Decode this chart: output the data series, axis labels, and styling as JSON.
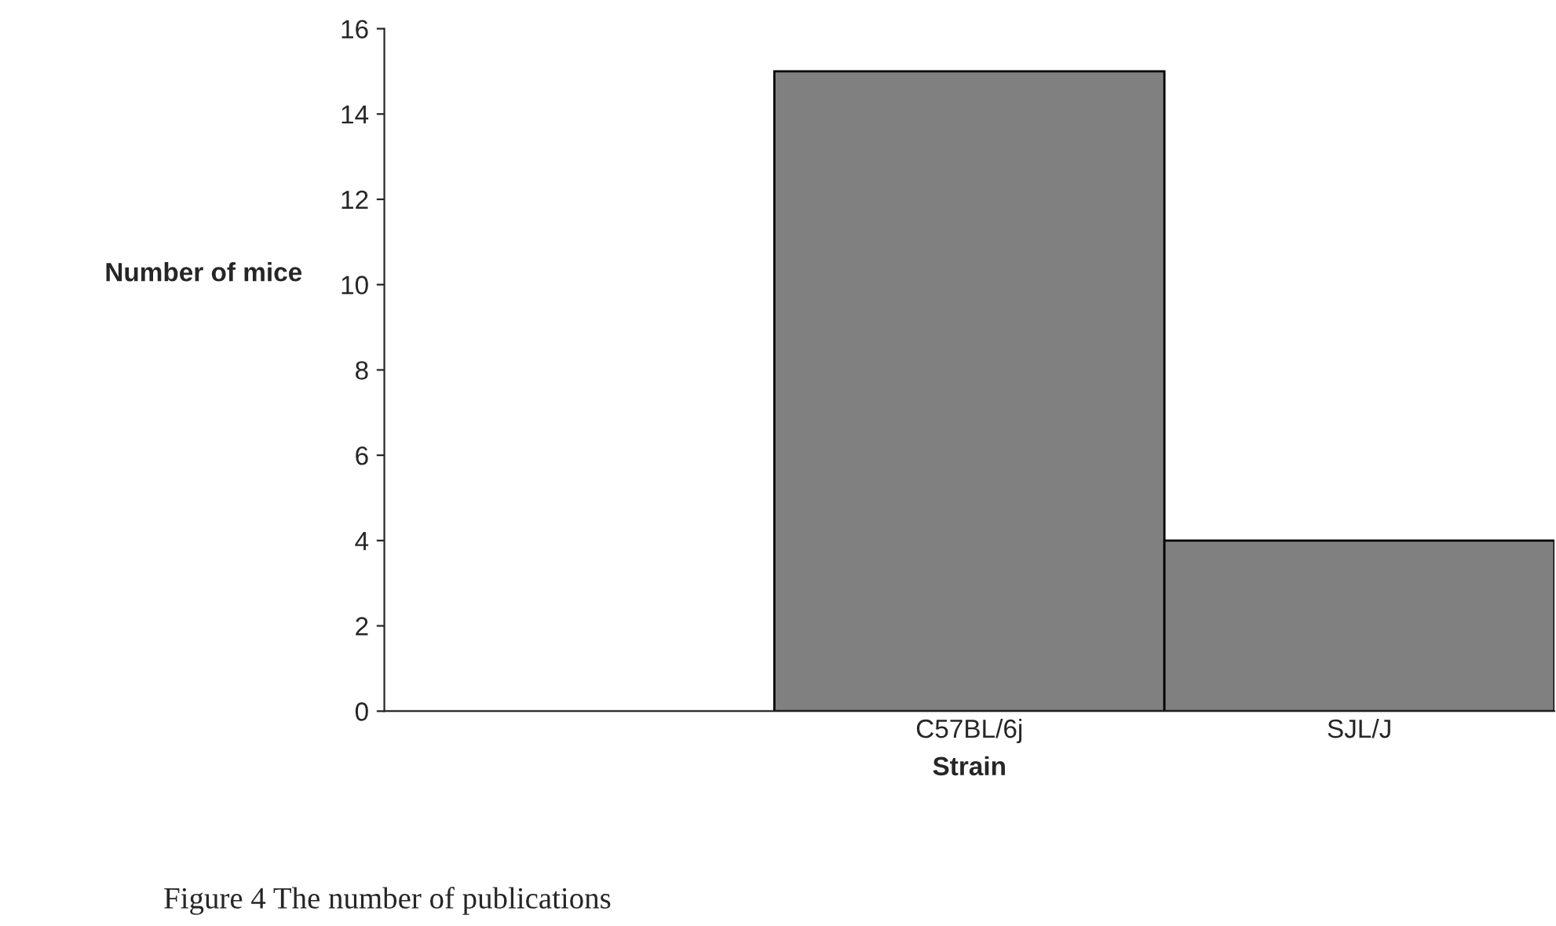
{
  "chart_data": {
    "type": "bar",
    "xlabel": "Strain",
    "ylabel": "Number of mice",
    "categories": [
      null,
      "C57BL/6j",
      "SJL/J"
    ],
    "values": [
      0,
      15,
      4
    ],
    "color": "#808080",
    "ylim": [
      0,
      16
    ],
    "yticks": [
      0,
      2,
      4,
      6,
      8,
      10,
      12,
      14,
      16
    ],
    "grid": false,
    "legend": false,
    "annotations": [
      "Figure 4 The number of publications"
    ]
  }
}
